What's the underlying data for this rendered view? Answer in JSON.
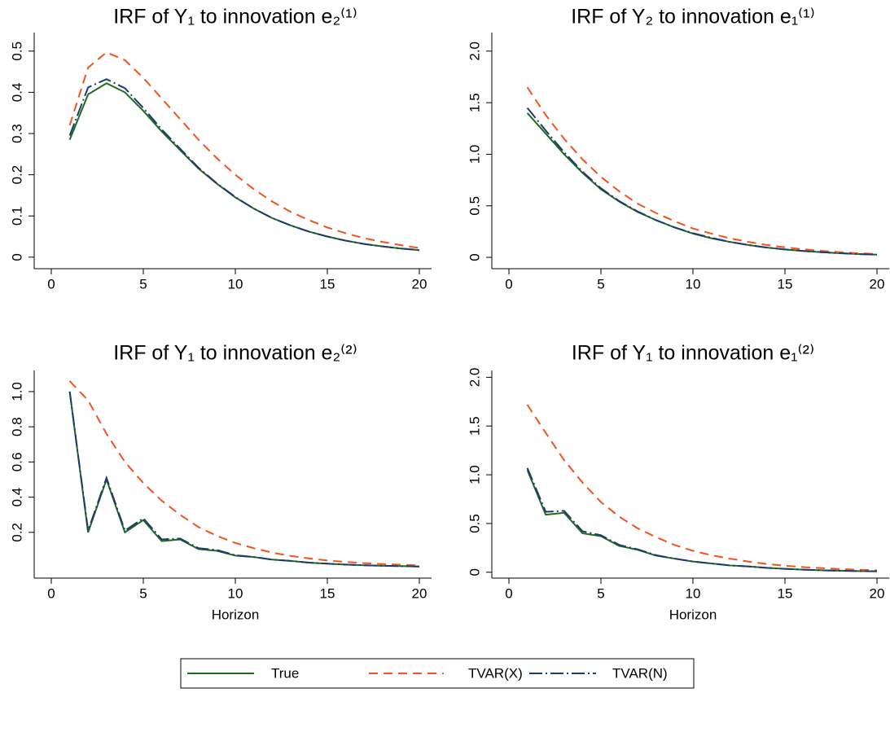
{
  "chart_data": [
    {
      "type": "line",
      "title": "IRF of Y₁ to innovation e₂⁽¹⁾",
      "x": [
        1,
        2,
        3,
        4,
        5,
        6,
        7,
        8,
        9,
        10,
        11,
        12,
        13,
        14,
        15,
        16,
        17,
        18,
        19,
        20
      ],
      "xlim": [
        0,
        20
      ],
      "xticks": [
        0,
        5,
        10,
        15,
        20
      ],
      "ylim": [
        -0.028,
        0.545
      ],
      "yticks": [
        0,
        0.1,
        0.2,
        0.3,
        0.4,
        0.5
      ],
      "series": [
        {
          "name": "True",
          "color": "#1e6b1e",
          "linestyle": "solid",
          "values": [
            0.285,
            0.395,
            0.422,
            0.4,
            0.355,
            0.305,
            0.26,
            0.215,
            0.178,
            0.145,
            0.118,
            0.095,
            0.077,
            0.062,
            0.05,
            0.04,
            0.032,
            0.026,
            0.021,
            0.017
          ]
        },
        {
          "name": "TVAR(X)",
          "color": "#f4511e",
          "linestyle": "dashed",
          "values": [
            0.32,
            0.46,
            0.497,
            0.478,
            0.435,
            0.385,
            0.335,
            0.285,
            0.24,
            0.2,
            0.165,
            0.135,
            0.11,
            0.09,
            0.072,
            0.058,
            0.046,
            0.037,
            0.029,
            0.022
          ]
        },
        {
          "name": "TVAR(N)",
          "color": "#1f3a6e",
          "linestyle": "dashdot",
          "values": [
            0.295,
            0.412,
            0.432,
            0.41,
            0.362,
            0.31,
            0.263,
            0.217,
            0.179,
            0.146,
            0.118,
            0.095,
            0.077,
            0.062,
            0.05,
            0.04,
            0.032,
            0.026,
            0.021,
            0.017
          ]
        }
      ]
    },
    {
      "type": "line",
      "title": "IRF of Y₂ to innovation e₁⁽¹⁾",
      "x": [
        1,
        2,
        3,
        4,
        5,
        6,
        7,
        8,
        9,
        10,
        11,
        12,
        13,
        14,
        15,
        16,
        17,
        18,
        19,
        20
      ],
      "xlim": [
        0,
        20
      ],
      "xticks": [
        0,
        5,
        10,
        15,
        20
      ],
      "ylim": [
        -0.11,
        2.18
      ],
      "yticks": [
        0,
        0.5,
        {
          "value": 1,
          "label": "1.0"
        },
        1.5,
        {
          "value": 2,
          "label": "2.0"
        }
      ],
      "series": [
        {
          "color": "#1e6b1e",
          "linestyle": "solid",
          "values": [
            1.4,
            1.2,
            1.0,
            0.82,
            0.66,
            0.54,
            0.44,
            0.36,
            0.29,
            0.23,
            0.185,
            0.15,
            0.12,
            0.095,
            0.077,
            0.062,
            0.05,
            0.04,
            0.032,
            0.026
          ]
        },
        {
          "color": "#f4511e",
          "linestyle": "dashed",
          "values": [
            1.65,
            1.38,
            1.15,
            0.95,
            0.78,
            0.64,
            0.52,
            0.43,
            0.35,
            0.28,
            0.23,
            0.185,
            0.15,
            0.12,
            0.097,
            0.078,
            0.063,
            0.05,
            0.04,
            0.032
          ]
        },
        {
          "color": "#1f3a6e",
          "linestyle": "dashdot",
          "values": [
            1.45,
            1.23,
            1.02,
            0.83,
            0.67,
            0.545,
            0.445,
            0.36,
            0.29,
            0.235,
            0.19,
            0.15,
            0.12,
            0.095,
            0.077,
            0.062,
            0.05,
            0.04,
            0.032,
            0.026
          ]
        }
      ]
    },
    {
      "type": "line",
      "title": "IRF of Y₁ to innovation e₂⁽²⁾",
      "xlabel": "Horizon",
      "x": [
        1,
        2,
        3,
        4,
        5,
        6,
        7,
        8,
        9,
        10,
        11,
        12,
        13,
        14,
        15,
        16,
        17,
        18,
        19,
        20
      ],
      "xlim": [
        0,
        20
      ],
      "xticks": [
        0,
        5,
        10,
        15,
        20
      ],
      "ylim": [
        -0.06,
        1.12
      ],
      "yticks": [
        0.2,
        0.4,
        0.6,
        0.8,
        {
          "value": 1,
          "label": "1.0"
        }
      ],
      "series": [
        {
          "color": "#1e6b1e",
          "linestyle": "solid",
          "values": [
            1.0,
            0.2,
            0.5,
            0.2,
            0.27,
            0.15,
            0.16,
            0.105,
            0.095,
            0.068,
            0.06,
            0.045,
            0.038,
            0.028,
            0.022,
            0.017,
            0.013,
            0.01,
            0.008,
            0.006
          ]
        },
        {
          "color": "#f4511e",
          "linestyle": "dashed",
          "values": [
            1.06,
            0.95,
            0.76,
            0.6,
            0.48,
            0.38,
            0.3,
            0.23,
            0.18,
            0.14,
            0.11,
            0.085,
            0.066,
            0.052,
            0.04,
            0.032,
            0.025,
            0.02,
            0.016,
            0.012
          ]
        },
        {
          "color": "#1f3a6e",
          "linestyle": "dashdot",
          "values": [
            1.0,
            0.21,
            0.51,
            0.21,
            0.28,
            0.16,
            0.165,
            0.11,
            0.1,
            0.07,
            0.06,
            0.045,
            0.038,
            0.028,
            0.022,
            0.017,
            0.013,
            0.01,
            0.008,
            0.006
          ]
        }
      ]
    },
    {
      "type": "line",
      "title": "IRF of Y₁ to innovation e₁⁽²⁾",
      "xlabel": "Horizon",
      "x": [
        1,
        2,
        3,
        4,
        5,
        6,
        7,
        8,
        9,
        10,
        11,
        12,
        13,
        14,
        15,
        16,
        17,
        18,
        19,
        20
      ],
      "xlim": [
        0,
        20
      ],
      "xticks": [
        0,
        5,
        10,
        15,
        20
      ],
      "ylim": [
        -0.06,
        2.07
      ],
      "yticks": [
        0,
        0.5,
        {
          "value": 1,
          "label": "1.0"
        },
        1.5,
        {
          "value": 2,
          "label": "2.0"
        }
      ],
      "series": [
        {
          "color": "#1e6b1e",
          "linestyle": "solid",
          "values": [
            1.05,
            0.59,
            0.61,
            0.4,
            0.37,
            0.27,
            0.23,
            0.17,
            0.14,
            0.11,
            0.09,
            0.07,
            0.06,
            0.045,
            0.035,
            0.027,
            0.02,
            0.016,
            0.012,
            0.01
          ]
        },
        {
          "color": "#f4511e",
          "linestyle": "dashed",
          "values": [
            1.72,
            1.43,
            1.15,
            0.92,
            0.72,
            0.57,
            0.45,
            0.36,
            0.28,
            0.22,
            0.175,
            0.14,
            0.11,
            0.085,
            0.067,
            0.053,
            0.042,
            0.033,
            0.026,
            0.02
          ]
        },
        {
          "color": "#1f3a6e",
          "linestyle": "dashdot",
          "values": [
            1.07,
            0.62,
            0.63,
            0.42,
            0.38,
            0.28,
            0.235,
            0.175,
            0.14,
            0.11,
            0.09,
            0.07,
            0.06,
            0.045,
            0.035,
            0.027,
            0.02,
            0.016,
            0.012,
            0.01
          ]
        }
      ]
    }
  ]
}
